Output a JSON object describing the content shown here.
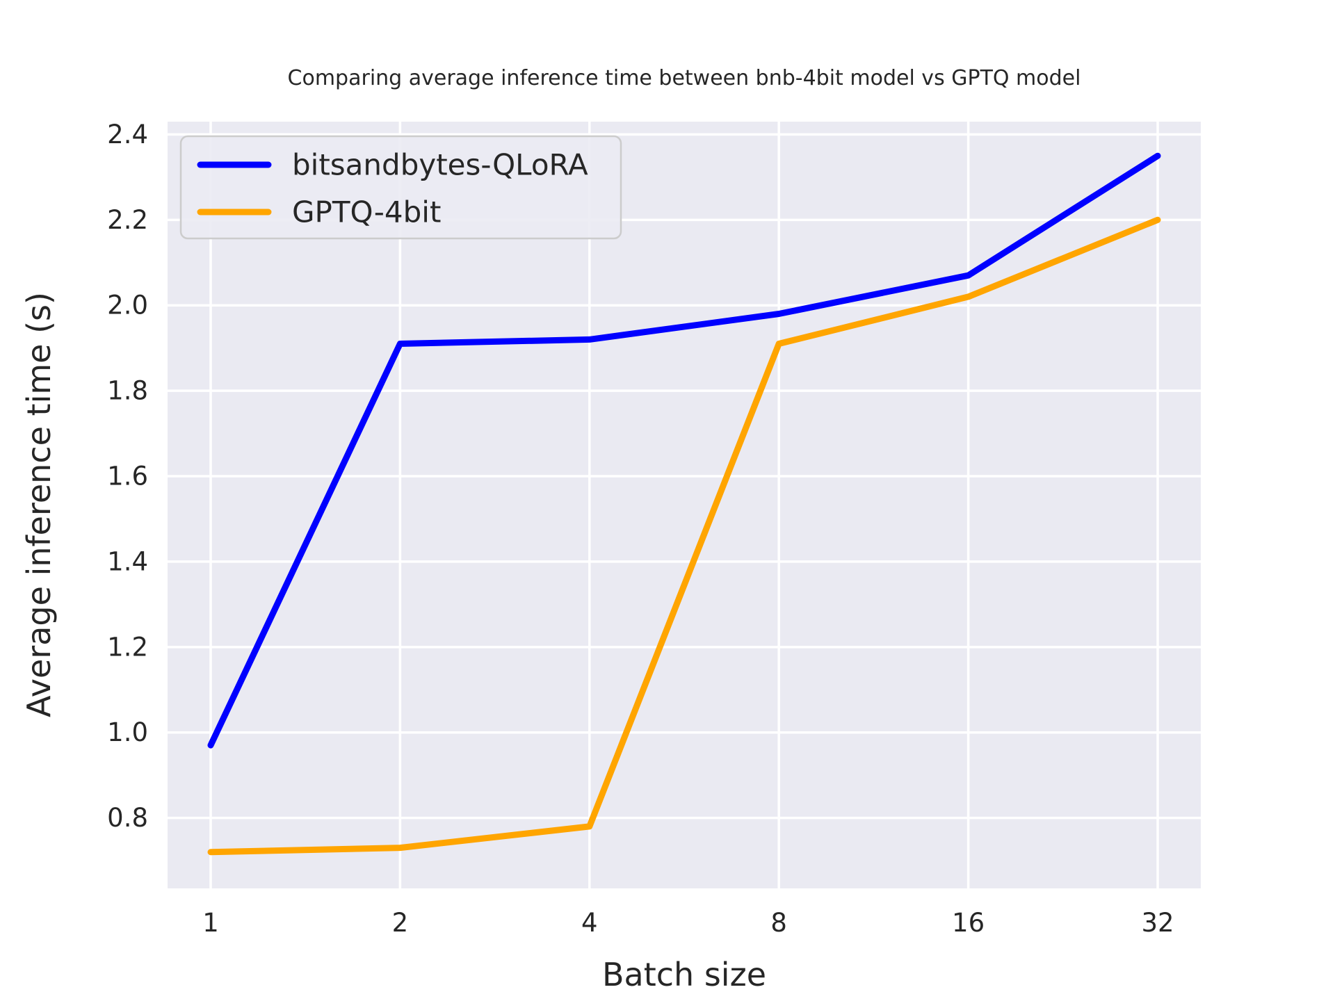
{
  "figure": {
    "background": "#ffffff",
    "plot_background": "#eaeaf2",
    "grid_color": "#ffffff",
    "text_color": "#262626",
    "legend_border_color": "#cccccc",
    "legend_fill": "#ebebf3"
  },
  "chart_data": {
    "type": "line",
    "title": "Comparing average inference time between bnb-4bit model vs GPTQ model",
    "xlabel": "Batch size",
    "ylabel": "Average inference time (s)",
    "categories": [
      "1",
      "2",
      "4",
      "8",
      "16",
      "32"
    ],
    "x_scale": "log2-categorical",
    "ylim": [
      0.635,
      2.43
    ],
    "yticks": [
      0.8,
      1.0,
      1.2,
      1.4,
      1.6,
      1.8,
      2.0,
      2.2,
      2.4
    ],
    "grid": true,
    "legend_position": "upper-left",
    "series": [
      {
        "name": "bitsandbytes-QLoRA",
        "color": "#0000ff",
        "values": [
          0.97,
          1.91,
          1.92,
          1.98,
          2.07,
          2.35
        ]
      },
      {
        "name": "GPTQ-4bit",
        "color": "#ffa500",
        "values": [
          0.72,
          0.73,
          0.78,
          1.91,
          2.02,
          2.2
        ]
      }
    ]
  }
}
